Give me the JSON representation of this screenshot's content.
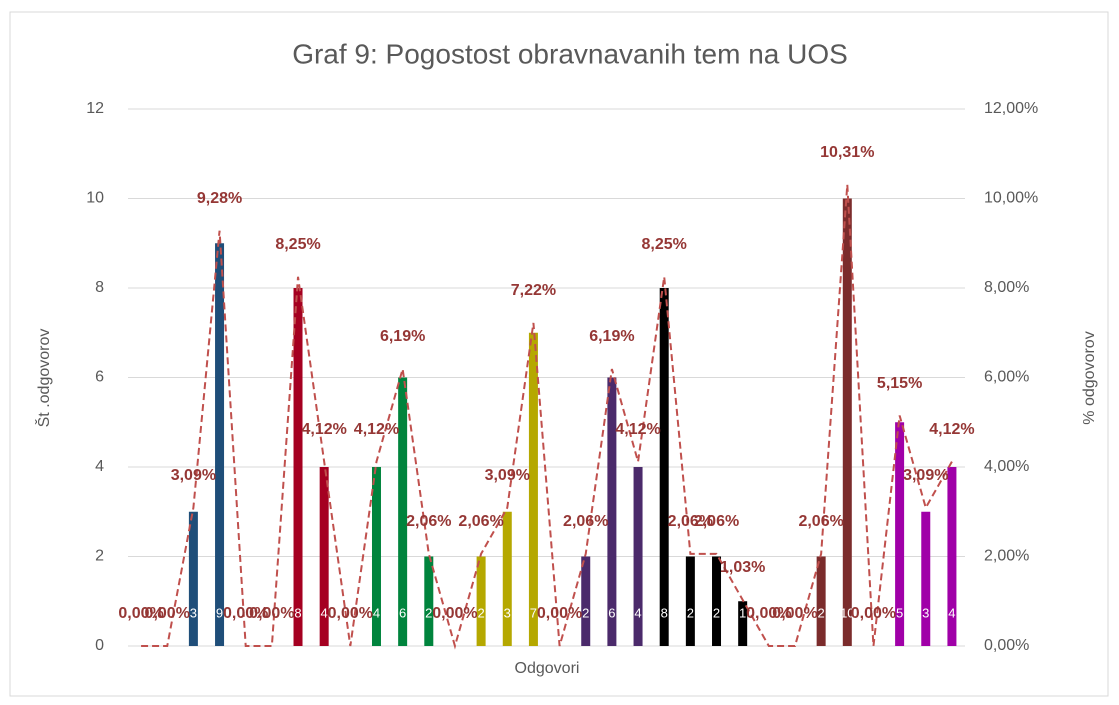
{
  "chart_data": {
    "type": "bar",
    "title": "Graf 9:  Pogostost obravnavanih tem na UOS",
    "x_label": "Odgovori",
    "y_label": "Št .odgovorov",
    "y2_label": "% odgovorov",
    "categories": [
      null,
      null,
      null,
      null,
      null,
      null,
      null,
      null,
      null,
      null,
      null,
      null,
      null,
      null,
      null,
      null,
      null,
      null,
      null,
      null,
      null,
      null,
      null,
      null,
      null,
      null,
      null,
      null,
      null,
      null,
      null,
      null
    ],
    "ylim": [
      0,
      12
    ],
    "yticks": [
      0,
      2,
      4,
      6,
      8,
      10,
      12
    ],
    "y2lim": [
      0,
      12
    ],
    "y2ticks": [
      {
        "value": 0,
        "label": "0,00%"
      },
      {
        "value": 2,
        "label": "2,00%"
      },
      {
        "value": 4,
        "label": "4,00%"
      },
      {
        "value": 6,
        "label": "6,00%"
      },
      {
        "value": 8,
        "label": "8,00%"
      },
      {
        "value": 10,
        "label": "10,00%"
      },
      {
        "value": 12,
        "label": "12,00%"
      }
    ],
    "grid": true,
    "series": [
      {
        "type": "bar",
        "colors": [
          "#1f4e79",
          "#1f4e79",
          "#1f4e79",
          "#1f4e79",
          "#a50021",
          "#a50021",
          "#a50021",
          "#a50021",
          "#00843d",
          "#00843d",
          "#00843d",
          "#00843d",
          "#b5a800",
          "#b5a800",
          "#b5a800",
          "#b5a800",
          "#4b2a6b",
          "#4b2a6b",
          "#4b2a6b",
          "#4b2a6b",
          "#000000",
          "#000000",
          "#000000",
          "#000000",
          "#7b2c2c",
          "#7b2c2c",
          "#7b2c2c",
          "#7b2c2c",
          "#a000a8",
          "#a000a8",
          "#a000a8",
          "#a000a8"
        ],
        "values": [
          0,
          0,
          3,
          9,
          0,
          0,
          8,
          4,
          0,
          4,
          6,
          2,
          0,
          2,
          3,
          7,
          0,
          2,
          6,
          4,
          8,
          2,
          2,
          1,
          0,
          0,
          2,
          10,
          0,
          5,
          3,
          4
        ]
      },
      {
        "type": "line",
        "axis": "y2",
        "color": "#c0504d",
        "values": [
          0,
          0,
          3.09,
          9.28,
          0,
          0,
          8.25,
          4.12,
          0,
          4.12,
          6.19,
          2.06,
          0,
          2.06,
          3.09,
          7.22,
          0,
          2.06,
          6.19,
          4.12,
          8.25,
          2.06,
          2.06,
          1.03,
          0,
          0,
          2.06,
          10.31,
          0,
          5.15,
          3.09,
          4.12
        ],
        "value_labels": [
          "0,00%",
          "0,00%",
          "3,09%",
          "9,28%",
          "0,00%",
          "0,00%",
          "8,25%",
          "4,12%",
          "0,00%",
          "4,12%",
          "6,19%",
          "2,06%",
          "0,00%",
          "2,06%",
          "3,09%",
          "7,22%",
          "0,00%",
          "2,06%",
          "6,19%",
          "4,12%",
          "8,25%",
          "2,06%",
          "2,06%",
          "1,03%",
          "0,00%",
          "0,00%",
          "2,06%",
          "10,31%",
          "0,00%",
          "5,15%",
          "3,09%",
          "4,12%"
        ]
      }
    ]
  }
}
